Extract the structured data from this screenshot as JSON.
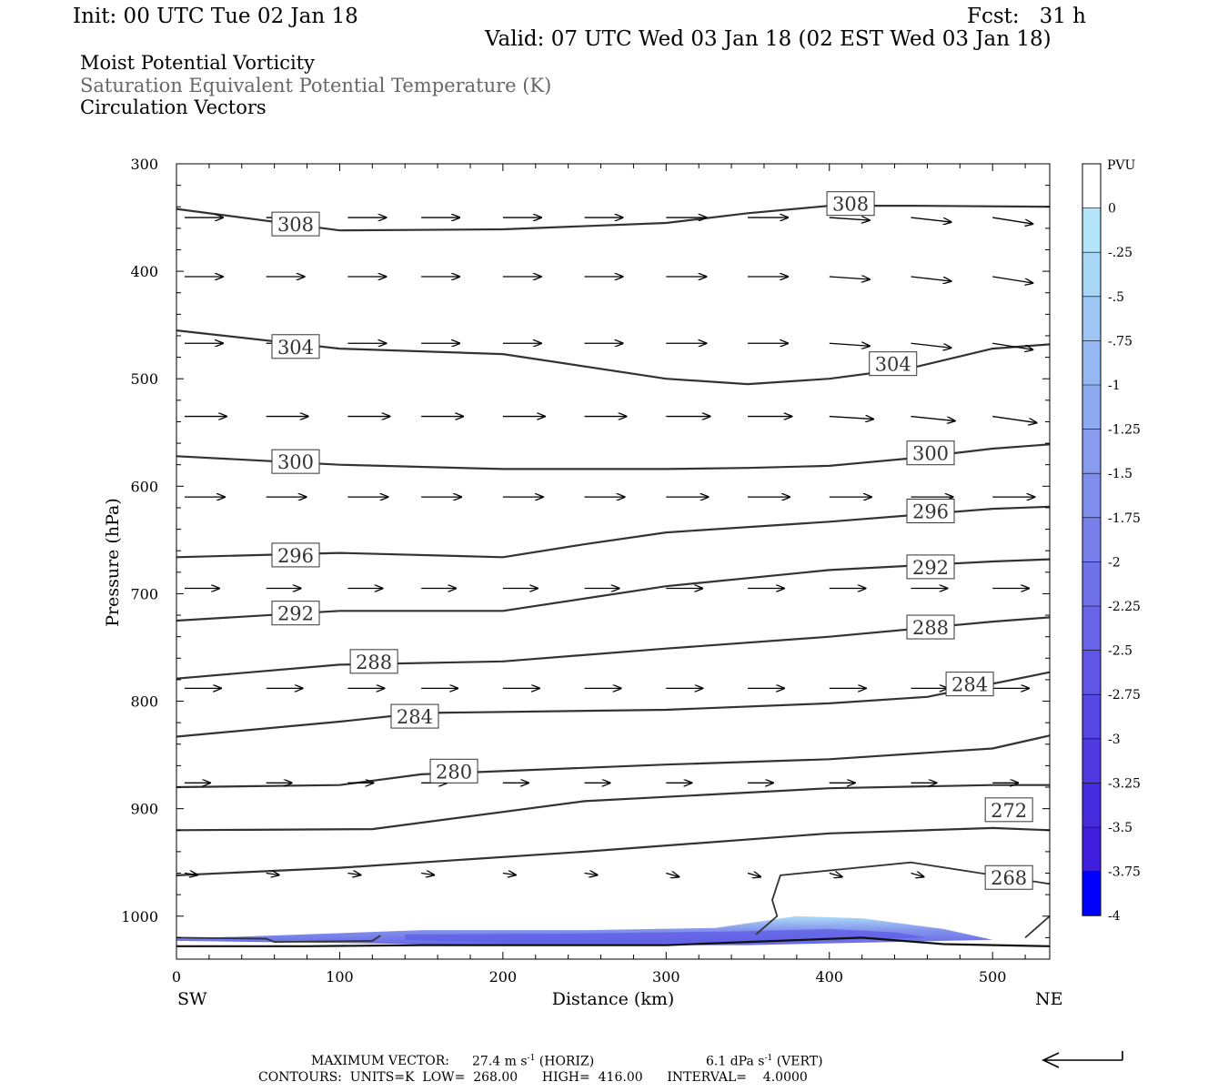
{
  "header": {
    "init": "Init: 00 UTC Tue 02 Jan 18",
    "fcst": "Fcst:   31 h",
    "valid": "Valid: 07 UTC Wed 03 Jan 18 (02 EST Wed 03 Jan 18)",
    "field1": "Moist Potential Vorticity",
    "field2": "Saturation Equivalent Potential Temperature (K)",
    "field3": "Circulation Vectors"
  },
  "footer": {
    "max_vector_label": "MAXIMUM VECTOR:",
    "max_vector_horiz": "27.4 m s",
    "horiz_suffix": "(HORIZ)",
    "max_vector_vert": "6.1 dPa s",
    "vert_suffix": "(VERT)",
    "exponent": "-1",
    "contours": "CONTOURS:  UNITS=K  LOW=  268.00      HIGH=  416.00      INTERVAL=    4.0000"
  },
  "colors": {
    "contour": "#333333",
    "frame": "#000000",
    "pv_min": "#0000ff",
    "pv_light": "#a8dcf8"
  },
  "chart_data": {
    "type": "contour",
    "xlabel": "Distance (km)",
    "ylabel": "Pressure (hPa)",
    "xlim": [
      0,
      535
    ],
    "ylim": [
      1040,
      300
    ],
    "x_ticks": [
      0,
      100,
      200,
      300,
      400,
      500
    ],
    "y_ticks": [
      300,
      400,
      500,
      600,
      700,
      800,
      900,
      1000
    ],
    "x_left_label": "SW",
    "x_right_label": "NE",
    "contours": [
      {
        "level": "308",
        "points": [
          [
            0,
            342
          ],
          [
            100,
            362
          ],
          [
            200,
            361
          ],
          [
            300,
            355
          ],
          [
            350,
            346
          ],
          [
            400,
            339
          ],
          [
            450,
            339
          ],
          [
            535,
            340
          ]
        ],
        "labels": [
          [
            73,
            356
          ],
          [
            413,
            337
          ]
        ]
      },
      {
        "level": "304",
        "points": [
          [
            0,
            455
          ],
          [
            100,
            472
          ],
          [
            200,
            477
          ],
          [
            300,
            500
          ],
          [
            350,
            505
          ],
          [
            400,
            500
          ],
          [
            450,
            490
          ],
          [
            500,
            472
          ],
          [
            535,
            468
          ]
        ],
        "labels": [
          [
            73,
            470
          ],
          [
            439,
            486
          ]
        ]
      },
      {
        "level": "300",
        "points": [
          [
            0,
            572
          ],
          [
            100,
            580
          ],
          [
            200,
            584
          ],
          [
            300,
            584
          ],
          [
            350,
            583
          ],
          [
            400,
            581
          ],
          [
            450,
            574
          ],
          [
            500,
            565
          ],
          [
            535,
            561
          ]
        ],
        "labels": [
          [
            73,
            577
          ],
          [
            462,
            569
          ]
        ]
      },
      {
        "level": "296",
        "points": [
          [
            0,
            666
          ],
          [
            100,
            662
          ],
          [
            200,
            666
          ],
          [
            250,
            654
          ],
          [
            300,
            643
          ],
          [
            400,
            633
          ],
          [
            500,
            621
          ],
          [
            535,
            619
          ]
        ],
        "labels": [
          [
            73,
            664
          ],
          [
            462,
            623
          ]
        ]
      },
      {
        "level": "292",
        "points": [
          [
            0,
            725
          ],
          [
            100,
            716
          ],
          [
            200,
            716
          ],
          [
            300,
            693
          ],
          [
            400,
            678
          ],
          [
            500,
            670
          ],
          [
            535,
            668
          ]
        ],
        "labels": [
          [
            73,
            718
          ],
          [
            462,
            675
          ]
        ]
      },
      {
        "level": "288",
        "points": [
          [
            0,
            779
          ],
          [
            100,
            766
          ],
          [
            200,
            763
          ],
          [
            300,
            751
          ],
          [
            400,
            740
          ],
          [
            500,
            726
          ],
          [
            535,
            722
          ]
        ],
        "labels": [
          [
            121,
            763
          ],
          [
            462,
            731
          ]
        ]
      },
      {
        "level": "284",
        "points": [
          [
            0,
            833
          ],
          [
            100,
            819
          ],
          [
            150,
            811
          ],
          [
            300,
            808
          ],
          [
            400,
            802
          ],
          [
            460,
            796
          ],
          [
            535,
            773
          ]
        ],
        "labels": [
          [
            146,
            814
          ],
          [
            486,
            784
          ]
        ]
      },
      {
        "level": "280",
        "points": [
          [
            0,
            880
          ],
          [
            100,
            878
          ],
          [
            150,
            868
          ],
          [
            300,
            859
          ],
          [
            400,
            854
          ],
          [
            500,
            844
          ],
          [
            535,
            832
          ]
        ],
        "labels": [
          [
            170,
            865
          ]
        ]
      },
      {
        "level": "272",
        "points": [
          [
            0,
            920
          ],
          [
            120,
            919
          ],
          [
            250,
            893
          ],
          [
            400,
            881
          ],
          [
            500,
            878
          ],
          [
            535,
            878
          ]
        ],
        "labels": [
          [
            510,
            901
          ]
        ]
      },
      {
        "level": "268",
        "points": [
          [
            0,
            962
          ],
          [
            100,
            955
          ],
          [
            250,
            940
          ],
          [
            400,
            923
          ],
          [
            500,
            918
          ],
          [
            535,
            920
          ]
        ],
        "labels": [
          [
            510,
            964
          ]
        ]
      }
    ],
    "pv_shading": {
      "levels": [
        0,
        -0.25,
        -0.5,
        -0.75,
        -1,
        -1.25,
        -1.5,
        -1.75,
        -2,
        -2.25,
        -2.5,
        -2.75,
        -3,
        -3.25,
        -3.5,
        -3.75,
        -4
      ],
      "region": "near surface, 1000-1030 hPa, 0-500 km"
    },
    "vectors": "circulation vectors, mostly westerly, weakening near surface",
    "colorbar": {
      "title": "PVU",
      "labels": [
        "0",
        "-.25",
        "-.5",
        "-.75",
        "-1",
        "-1.25",
        "-1.5",
        "-1.75",
        "-2",
        "-2.25",
        "-2.5",
        "-2.75",
        "-3",
        "-3.25",
        "-3.5",
        "-3.75",
        "-4"
      ],
      "colors": [
        "#ffffff",
        "#b4e4fa",
        "#a8d6f6",
        "#9ec6f4",
        "#96b8f2",
        "#8eaaf0",
        "#879cee",
        "#7f8eec",
        "#7780ea",
        "#6f72e8",
        "#6764e7",
        "#5f56e5",
        "#5748e3",
        "#4f3ae1",
        "#472cdf",
        "#3f1edd",
        "#0000ff"
      ]
    }
  }
}
